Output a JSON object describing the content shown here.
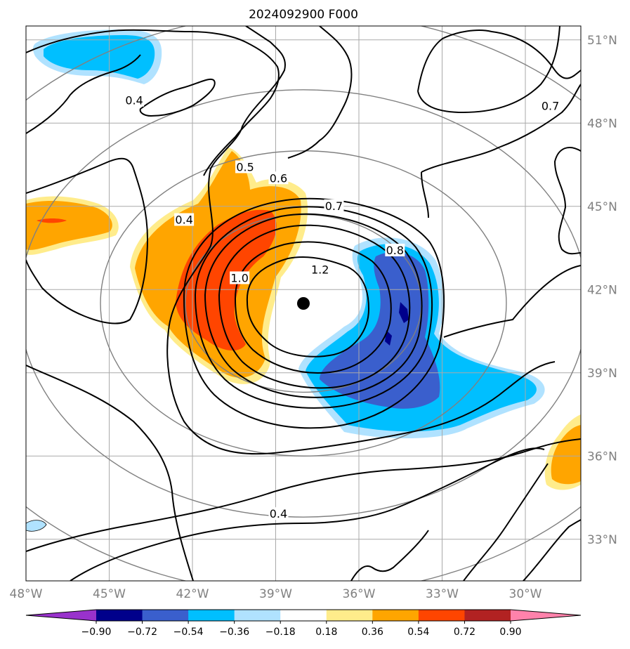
{
  "chart_data": {
    "type": "heatmap",
    "title": "2024092900 F000",
    "x_range": [
      -48,
      -28
    ],
    "y_range": [
      31.5,
      51.5
    ],
    "x_ticks": [
      {
        "value": -48,
        "label": "48°W"
      },
      {
        "value": -45,
        "label": "45°W"
      },
      {
        "value": -42,
        "label": "42°W"
      },
      {
        "value": -39,
        "label": "39°W"
      },
      {
        "value": -36,
        "label": "36°W"
      },
      {
        "value": -33,
        "label": "33°W"
      },
      {
        "value": -30,
        "label": "30°W"
      }
    ],
    "y_ticks": [
      {
        "value": 51,
        "label": "51°N"
      },
      {
        "value": 48,
        "label": "48°N"
      },
      {
        "value": 45,
        "label": "45°N"
      },
      {
        "value": 42,
        "label": "42°N"
      },
      {
        "value": 39,
        "label": "39°N"
      },
      {
        "value": 36,
        "label": "36°N"
      },
      {
        "value": 33,
        "label": "33°N"
      }
    ],
    "grid": true,
    "center": {
      "lon": -38.0,
      "lat": 41.5
    },
    "range_rings_deg": [
      3.2,
      5.5,
      7.7,
      10.5,
      13
    ],
    "colorbar": {
      "levels": [
        "−0.90",
        "−0.72",
        "−0.54",
        "−0.36",
        "−0.18",
        "0.18",
        "0.36",
        "0.54",
        "0.72",
        "0.90"
      ],
      "colors": [
        "#9932cc",
        "#00008b",
        "#3a5fcd",
        "#00bfff",
        "#b0e2ff",
        "#ffffff",
        "#ffec8b",
        "#ffa500",
        "#ff4500",
        "#b22222",
        "#ff82ab"
      ],
      "extend": "both",
      "placement": "bottom"
    },
    "contour_labels": [
      {
        "text": "0.4",
        "lon": -44.1,
        "lat": 48.8
      },
      {
        "text": "0.5",
        "lon": -40.1,
        "lat": 46.4
      },
      {
        "text": "0.6",
        "lon": -38.9,
        "lat": 46.0
      },
      {
        "text": "0.4",
        "lon": -42.3,
        "lat": 44.5
      },
      {
        "text": "0.7",
        "lon": -36.9,
        "lat": 45.0
      },
      {
        "text": "0.8",
        "lon": -34.7,
        "lat": 43.4
      },
      {
        "text": "1.2",
        "lon": -37.4,
        "lat": 42.7
      },
      {
        "text": "1.0",
        "lon": -40.3,
        "lat": 42.4
      },
      {
        "text": "0.4",
        "lon": -38.9,
        "lat": 33.9
      },
      {
        "text": "0.7",
        "lon": -29.1,
        "lat": 48.6
      }
    ]
  }
}
